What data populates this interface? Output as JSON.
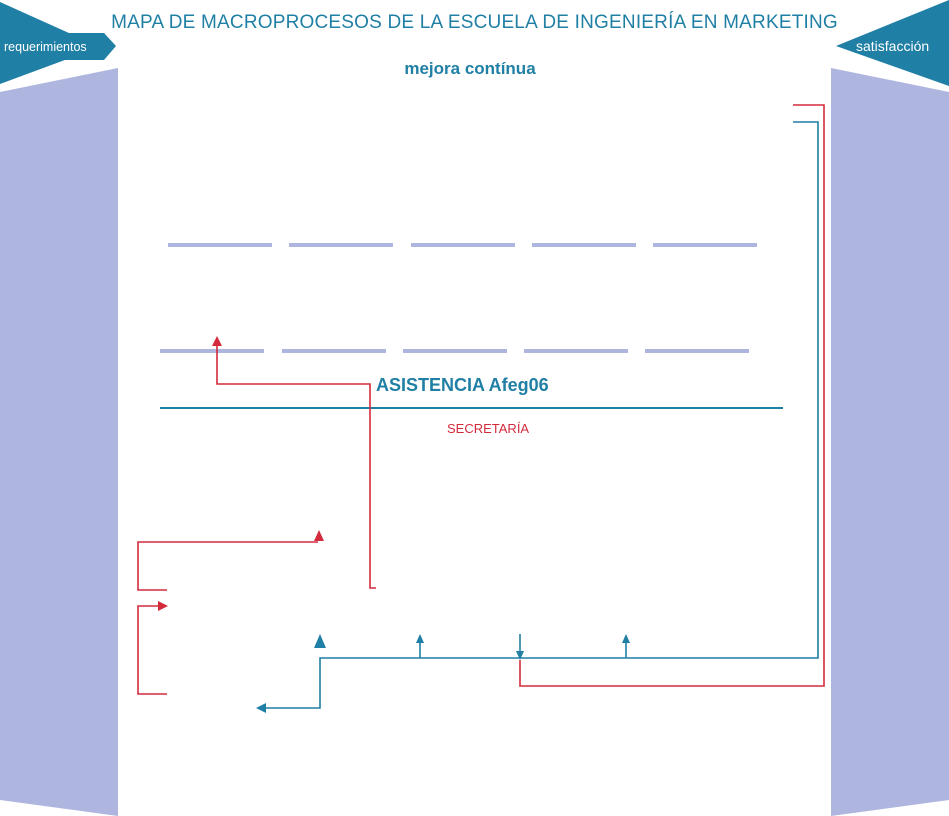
{
  "header": {
    "title": "MAPA DE MACROPROCESOS DE LA ESCUELA DE INGENIERÍA EN MARKETING",
    "subtitle": "mejora contínua"
  },
  "sides": {
    "left_label": "requerimientos",
    "right_label": "satisfacción"
  },
  "center": {
    "process_label": "ASISTENCIA Afeg06",
    "department_label": "SECRETARÍA"
  },
  "colors": {
    "teal": "#1f7fa4",
    "panel": "#aeb5de",
    "red": "#d32b3c",
    "dash": "#aeb5de"
  }
}
